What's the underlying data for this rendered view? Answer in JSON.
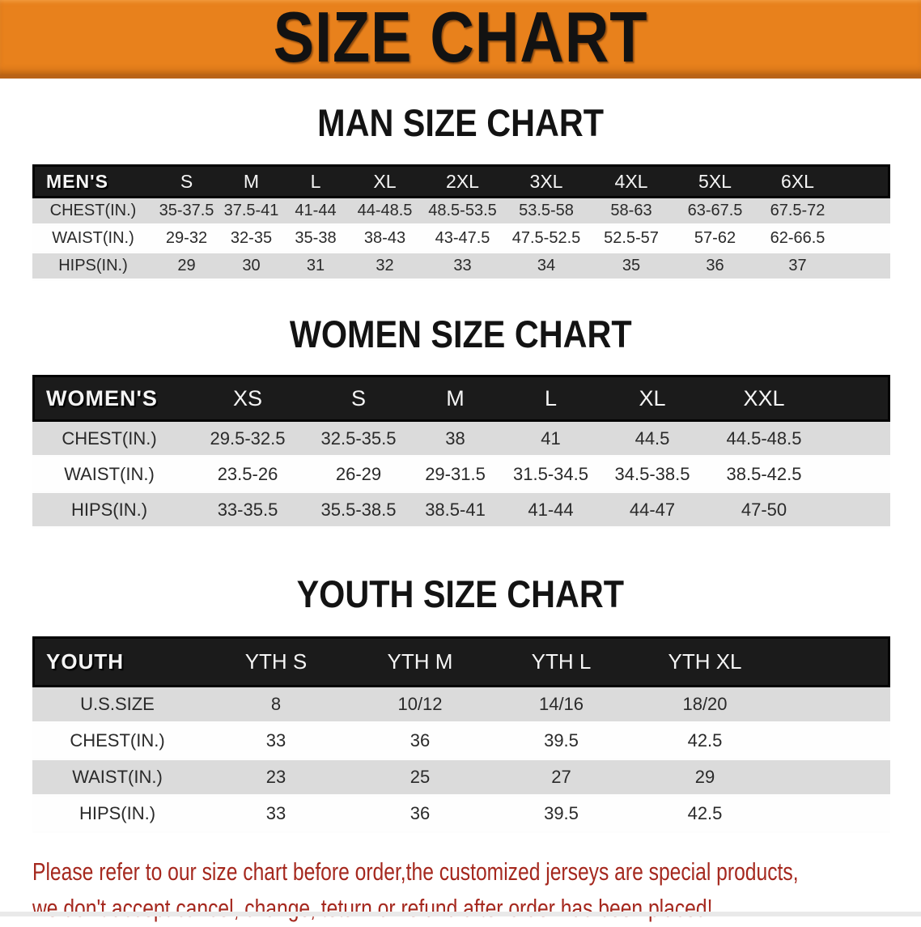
{
  "banner": {
    "title": "SIZE CHART",
    "bg_color": "#E8811C",
    "edge_color": "#B96317"
  },
  "colors": {
    "header_bar_bg": "#1B1B1B",
    "header_bar_text": "#F5F5F5",
    "row_shaded": "#DBDBDB",
    "row_plain": "#FEFEFE",
    "footer_red": "#A5281E"
  },
  "sections": [
    {
      "heading": "MAN SIZE CHART",
      "corner_label": "MEN'S",
      "sizes": [
        "S",
        "M",
        "L",
        "XL",
        "2XL",
        "3XL",
        "4XL",
        "5XL",
        "6XL"
      ],
      "rows": [
        {
          "label": "CHEST(IN.)",
          "values": [
            "35-37.5",
            "37.5-41",
            "41-44",
            "44-48.5",
            "48.5-53.5",
            "53.5-58",
            "58-63",
            "63-67.5",
            "67.5-72"
          ]
        },
        {
          "label": "WAIST(IN.)",
          "values": [
            "29-32",
            "32-35",
            "35-38",
            "38-43",
            "43-47.5",
            "47.5-52.5",
            "52.5-57",
            "57-62",
            "62-66.5"
          ]
        },
        {
          "label": "HIPS(IN.)",
          "values": [
            "29",
            "30",
            "31",
            "32",
            "33",
            "34",
            "35",
            "36",
            "37"
          ]
        }
      ]
    },
    {
      "heading": "WOMEN SIZE CHART",
      "corner_label": "WOMEN'S",
      "sizes": [
        "XS",
        "S",
        "M",
        "L",
        "XL",
        "XXL"
      ],
      "rows": [
        {
          "label": "CHEST(IN.)",
          "values": [
            "29.5-32.5",
            "32.5-35.5",
            "38",
            "41",
            "44.5",
            "44.5-48.5"
          ]
        },
        {
          "label": "WAIST(IN.)",
          "values": [
            "23.5-26",
            "26-29",
            "29-31.5",
            "31.5-34.5",
            "34.5-38.5",
            "38.5-42.5"
          ]
        },
        {
          "label": "HIPS(IN.)",
          "values": [
            "33-35.5",
            "35.5-38.5",
            "38.5-41",
            "41-44",
            "44-47",
            "47-50"
          ]
        }
      ]
    },
    {
      "heading": "YOUTH SIZE CHART",
      "corner_label": "YOUTH",
      "sizes": [
        "YTH S",
        "YTH M",
        "YTH L",
        "YTH XL"
      ],
      "rows": [
        {
          "label": "U.S.SIZE",
          "values": [
            "8",
            "10/12",
            "14/16",
            "18/20"
          ]
        },
        {
          "label": "CHEST(IN.)",
          "values": [
            "33",
            "36",
            "39.5",
            "42.5"
          ]
        },
        {
          "label": "WAIST(IN.)",
          "values": [
            "23",
            "25",
            "27",
            "29"
          ]
        },
        {
          "label": "HIPS(IN.)",
          "values": [
            "33",
            "36",
            "39.5",
            "42.5"
          ]
        }
      ]
    }
  ],
  "footer": {
    "line1": "Please refer to our size chart before order,the customized jerseys are special products,",
    "line2": "we don't accept cancel, change, teturn or refund after order has been placed!"
  }
}
